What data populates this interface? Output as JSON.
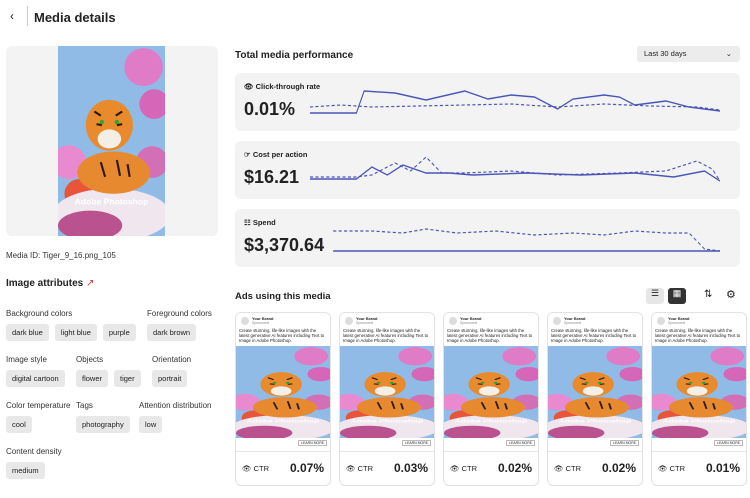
{
  "header": {
    "title": "Media details"
  },
  "media": {
    "overlay": "Adobe Photoshop",
    "id": "Media ID: Tiger_9_16.png_105"
  },
  "attributes": {
    "title": "Image attributes",
    "groups": [
      {
        "label": "Background colors",
        "chips": [
          "dark blue",
          "light blue",
          "purple"
        ]
      },
      {
        "label": "Foreground colors",
        "chips": [
          "dark brown"
        ]
      },
      {
        "label": "Image style",
        "chips": [
          "digital cartoon"
        ]
      },
      {
        "label": "Objects",
        "chips": [
          "flower",
          "tiger"
        ]
      },
      {
        "label": "Orientation",
        "chips": [
          "portrait"
        ]
      },
      {
        "label": "Color temperature",
        "chips": [
          "cool"
        ]
      },
      {
        "label": "Tags",
        "chips": [
          "photography"
        ]
      },
      {
        "label": "Attention distribution",
        "chips": [
          "low"
        ]
      },
      {
        "label": "Content density",
        "chips": [
          "medium"
        ]
      }
    ]
  },
  "performance": {
    "title": "Total media performance",
    "range": "Last 30 days",
    "metrics": [
      {
        "label": "Click-through rate",
        "value": "0.01%"
      },
      {
        "label": "Cost per action",
        "value": "$16.21"
      },
      {
        "label": "Spend",
        "value": "$3,370.64"
      }
    ]
  },
  "ads": {
    "title": "Ads using this media",
    "items": [
      {
        "brand": "Your Brand",
        "sub": "Sponsored",
        "text": "Create stunning, life-like images with the latest generative AI features including Text to Image in Adobe Photoshop.",
        "overlay": "Adobe Photoshop",
        "button": "LEARN MORE",
        "metric": "CTR",
        "value": "0.07%"
      },
      {
        "brand": "Your Brand",
        "sub": "Sponsored",
        "text": "Create stunning, life-like images with the latest generative AI features including Text to Image in Adobe Photoshop.",
        "overlay": "Adobe Photoshop",
        "button": "LEARN MORE",
        "metric": "CTR",
        "value": "0.03%"
      },
      {
        "brand": "Your Brand",
        "sub": "Sponsored",
        "text": "Create stunning, life-like images with the latest generative AI features including Text to Image in Adobe Photoshop.",
        "overlay": "Adobe Photoshop",
        "button": "LEARN MORE",
        "metric": "CTR",
        "value": "0.02%"
      },
      {
        "brand": "Your Brand",
        "sub": "Sponsored",
        "text": "Create stunning, life-like images with the latest generative AI features including Text to Image in Adobe Photoshop.",
        "overlay": "Adobe Photoshop",
        "button": "LEARN MORE",
        "metric": "CTR",
        "value": "0.02%"
      },
      {
        "brand": "Your Brand",
        "sub": "Sponsored",
        "text": "Create stunning, life-like images with the latest generative AI features including Text to Image in Adobe Photoshop.",
        "overlay": "Adobe Photoshop",
        "button": "LEARN MORE",
        "metric": "CTR",
        "value": "0.01%"
      }
    ]
  }
}
